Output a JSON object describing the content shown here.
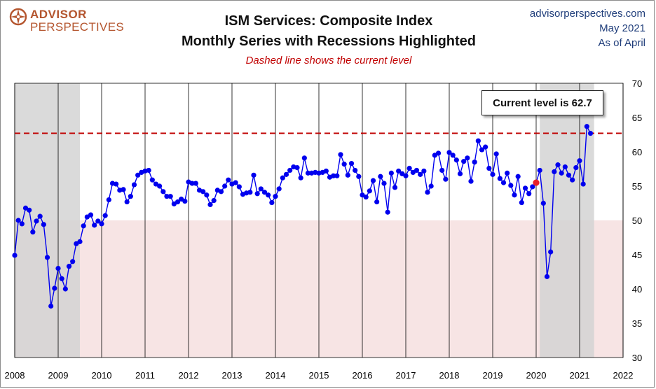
{
  "header": {
    "logo_top": "ADVISOR",
    "logo_bottom": "PERSPECTIVES",
    "title_line1": "ISM Services: Composite Index",
    "title_line2": "Monthly Series with Recessions Highlighted",
    "subtitle": "Dashed line shows the current level",
    "site": "advisorperspectives.com",
    "date": "May  2021",
    "as_of": "As of April"
  },
  "colors": {
    "series": "#0000ee",
    "current_line": "#c00000",
    "highlight_point": "#e8202a",
    "recession_band": "#d3d3d3",
    "contraction_zone": "#f7e4e4",
    "logo": "#b4552e",
    "right_text": "#1f3d7a"
  },
  "chart_data": {
    "type": "line",
    "title": "ISM Services: Composite Index",
    "subtitle": "Monthly Series with Recessions Highlighted",
    "xlabel": "",
    "ylabel": "",
    "xlim": [
      2008,
      2022
    ],
    "ylim": [
      30,
      70
    ],
    "x_ticks": [
      "2008",
      "2009",
      "2010",
      "2011",
      "2012",
      "2013",
      "2014",
      "2015",
      "2016",
      "2017",
      "2018",
      "2019",
      "2020",
      "2021",
      "2022"
    ],
    "y_ticks": [
      "30",
      "35",
      "40",
      "45",
      "50",
      "55",
      "60",
      "65",
      "70"
    ],
    "y_axis_side": "right",
    "grid": "vertical",
    "start": "2008-01",
    "frequency": "monthly",
    "values": [
      44.9,
      50.0,
      49.5,
      51.8,
      51.5,
      48.3,
      49.9,
      50.6,
      49.4,
      44.6,
      37.5,
      40.1,
      43.0,
      41.5,
      40.0,
      43.3,
      44.0,
      46.6,
      46.9,
      49.2,
      50.5,
      50.8,
      49.3,
      49.9,
      49.5,
      50.7,
      53.0,
      55.4,
      55.3,
      54.4,
      54.5,
      52.7,
      53.5,
      55.2,
      56.6,
      57.0,
      57.2,
      57.3,
      55.9,
      55.3,
      55.0,
      54.2,
      53.5,
      53.5,
      52.4,
      52.7,
      53.1,
      52.8,
      55.6,
      55.4,
      55.4,
      54.4,
      54.2,
      53.7,
      52.3,
      52.9,
      54.4,
      54.2,
      55.0,
      55.9,
      55.3,
      55.5,
      54.9,
      53.8,
      54.0,
      54.1,
      56.6,
      53.9,
      54.6,
      54.1,
      53.7,
      52.6,
      53.5,
      54.6,
      56.2,
      56.7,
      57.3,
      57.8,
      57.7,
      56.2,
      59.1,
      56.9,
      56.9,
      57.0,
      56.9,
      57.0,
      57.2,
      56.3,
      56.5,
      56.5,
      59.6,
      58.2,
      56.6,
      58.3,
      57.3,
      56.4,
      53.7,
      53.4,
      54.3,
      55.8,
      52.7,
      56.4,
      55.4,
      51.2,
      56.9,
      54.8,
      57.2,
      56.8,
      56.5,
      57.6,
      57.0,
      57.3,
      56.7,
      57.2,
      54.1,
      55.0,
      59.5,
      59.8,
      57.3,
      56.0,
      59.9,
      59.5,
      58.8,
      56.8,
      58.6,
      59.1,
      55.7,
      58.5,
      61.6,
      60.3,
      60.7,
      57.6,
      56.7,
      59.7,
      56.1,
      55.5,
      56.9,
      55.1,
      53.7,
      56.4,
      52.6,
      54.7,
      53.9,
      54.9,
      55.5,
      57.3,
      52.5,
      41.8,
      45.4,
      57.1,
      58.1,
      56.9,
      57.8,
      56.6,
      55.9,
      57.7,
      58.7,
      55.3,
      63.7,
      62.7
    ],
    "current_level": 62.7,
    "highlighted_point": {
      "date": "2020-01",
      "value": 55.5
    },
    "recessions": [
      [
        "2008-01",
        "2009-06"
      ],
      [
        "2020-02",
        "2021-04"
      ]
    ],
    "contraction_zone": [
      30,
      50
    ],
    "annotations": [
      "Current level is 62.7"
    ]
  }
}
